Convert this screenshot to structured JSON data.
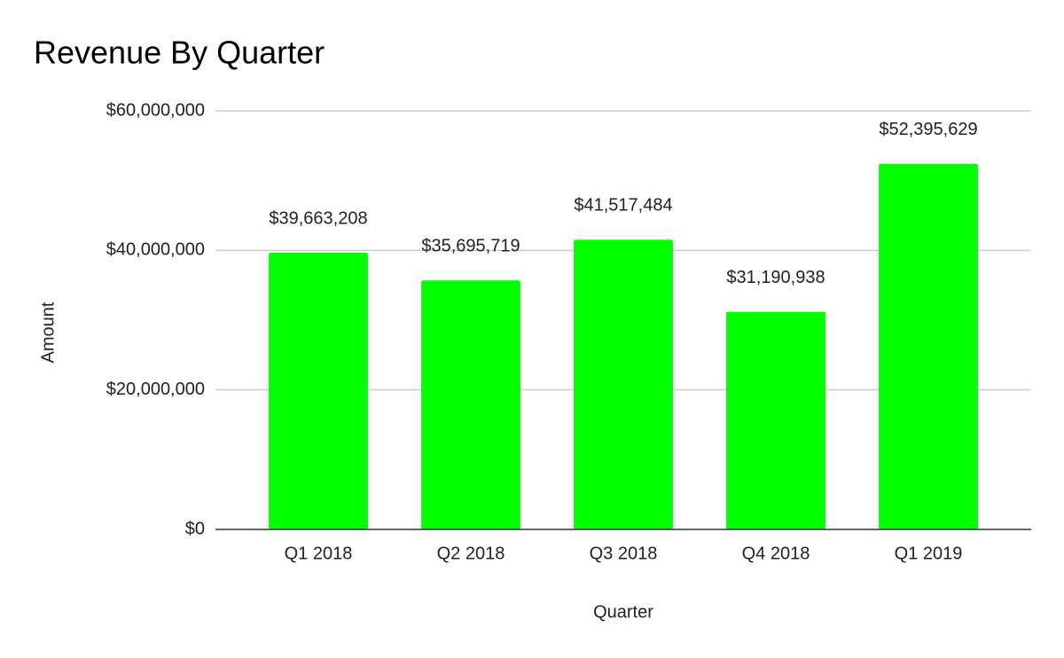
{
  "chart_data": {
    "type": "bar",
    "title": "Revenue By Quarter",
    "x_label": "Quarter",
    "y_label": "Amount",
    "categories": [
      "Q1 2018",
      "Q2 2018",
      "Q3 2018",
      "Q4 2018",
      "Q1 2019"
    ],
    "values": [
      39663208,
      35695719,
      41517484,
      31190938,
      52395629
    ],
    "value_labels": [
      "$39,663,208",
      "$35,695,719",
      "$41,517,484",
      "$31,190,938",
      "$52,395,629"
    ],
    "color": "#00ff00",
    "ylim": [
      0,
      60000000
    ],
    "yticks": [
      {
        "value": 0,
        "label": "$0"
      },
      {
        "value": 20000000,
        "label": "$20,000,000"
      },
      {
        "value": 40000000,
        "label": "$40,000,000"
      },
      {
        "value": 60000000,
        "label": "$60,000,000"
      }
    ],
    "grid": true
  }
}
